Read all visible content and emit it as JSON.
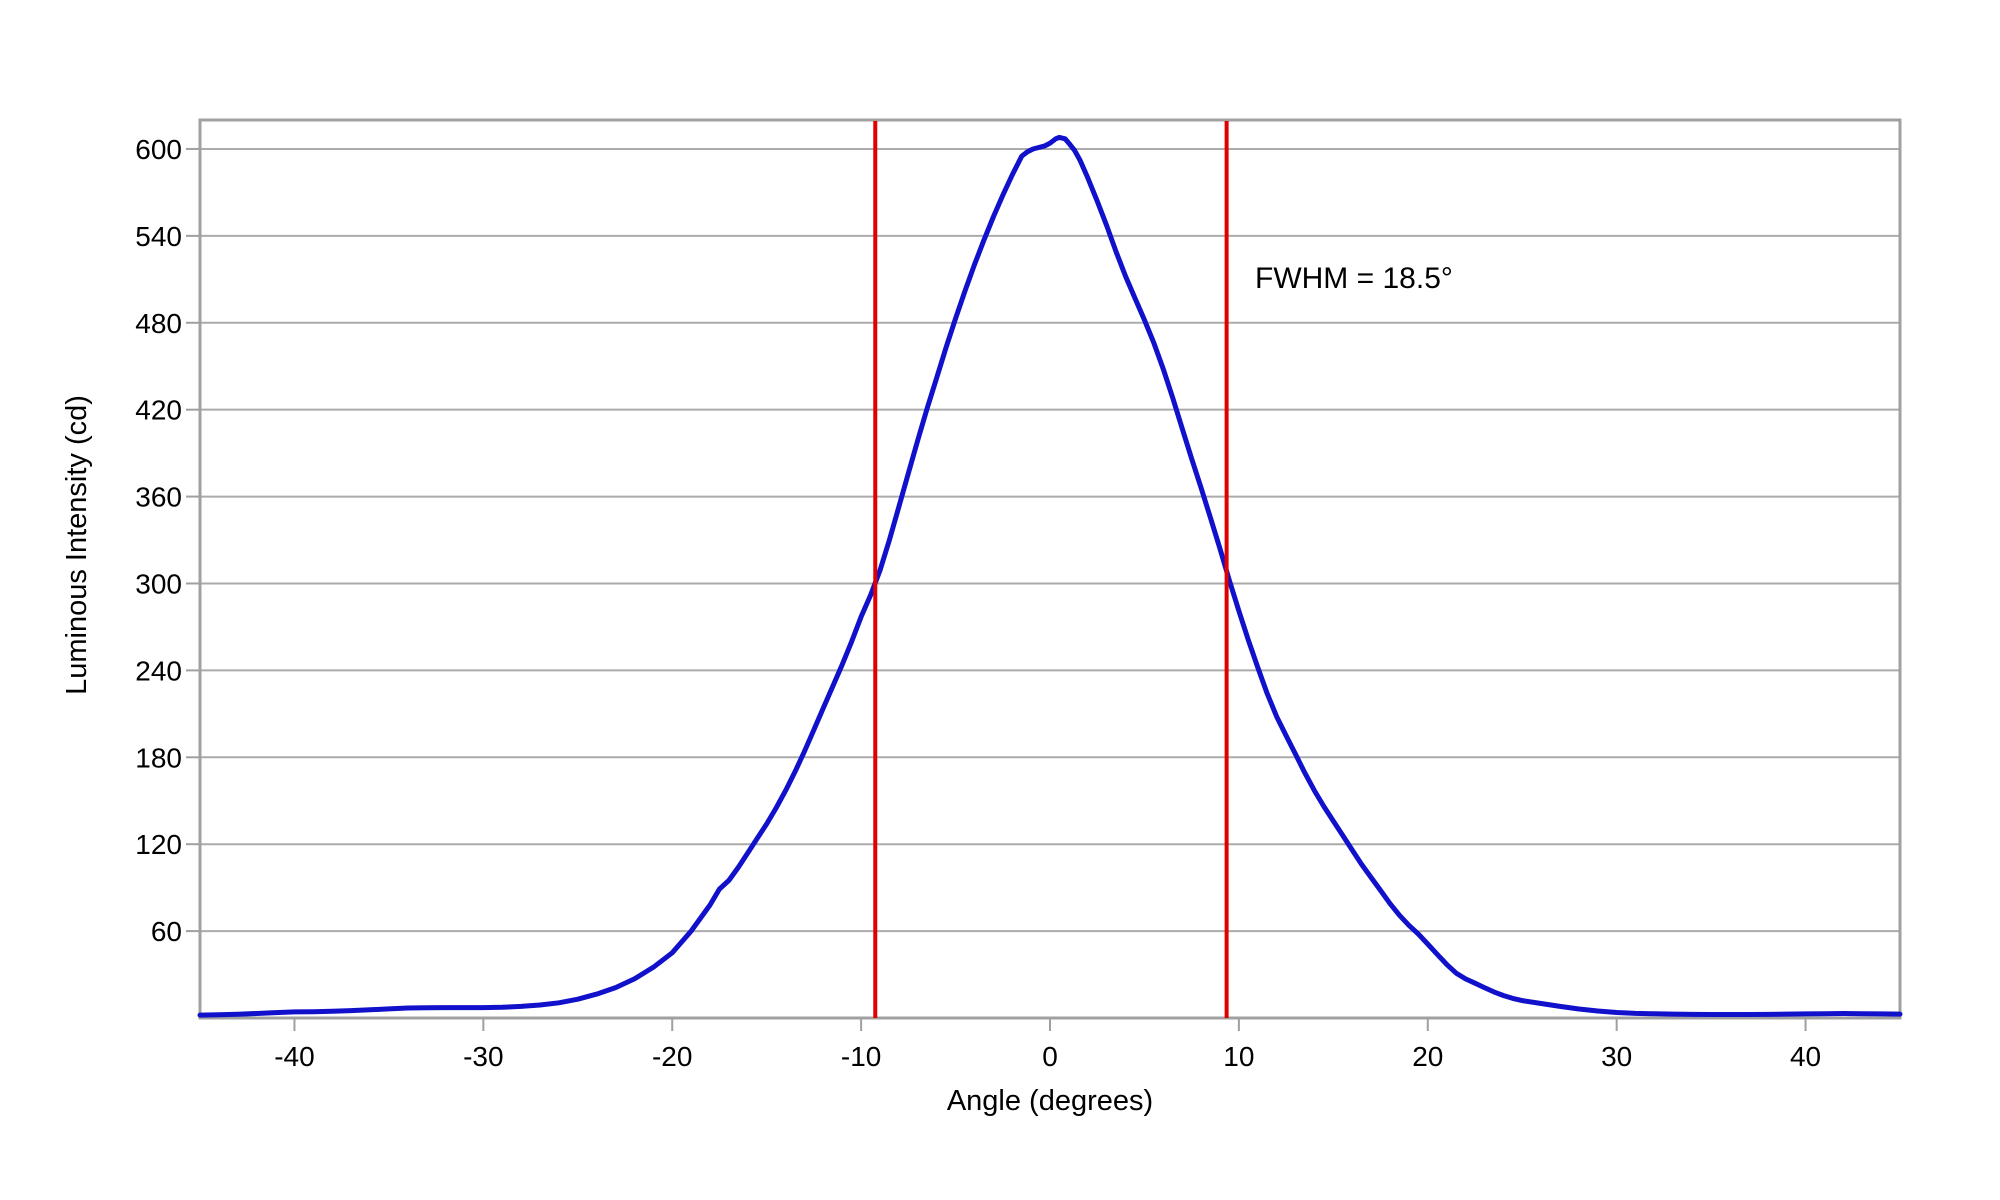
{
  "chart_data": {
    "type": "line",
    "title": "",
    "xlabel": "Angle (degrees)",
    "ylabel": "Luminous Intensity (cd)",
    "xlim": [
      -45,
      45
    ],
    "ylim": [
      0,
      620
    ],
    "x_ticks": [
      -40,
      -30,
      -20,
      -10,
      0,
      10,
      20,
      30,
      40
    ],
    "y_ticks": [
      60,
      120,
      180,
      240,
      300,
      360,
      420,
      480,
      540,
      600
    ],
    "grid": "horizontal-only",
    "legend": "none",
    "background_color": "#ffffff",
    "gridline_color": "#ababab",
    "border_color": "#a0a0a0",
    "annotation_text": "FWHM = 18.5°",
    "fwhm_degrees": 18.5,
    "fwhm_lines": {
      "color": "#e00000",
      "angles": [
        -9.25,
        9.35
      ],
      "half_max_cd": 300
    },
    "series": [
      {
        "name": "luminous-intensity-curve",
        "color": "#1111cc",
        "points": [
          [
            -45,
            2.0
          ],
          [
            -44,
            2.2
          ],
          [
            -43,
            2.6
          ],
          [
            -42,
            3.1
          ],
          [
            -41,
            3.7
          ],
          [
            -40,
            4.2
          ],
          [
            -39,
            4.3
          ],
          [
            -38,
            4.6
          ],
          [
            -37,
            5.1
          ],
          [
            -36,
            5.7
          ],
          [
            -35,
            6.3
          ],
          [
            -34,
            6.9
          ],
          [
            -33,
            7.1
          ],
          [
            -32,
            7.2
          ],
          [
            -31,
            7.2
          ],
          [
            -30,
            7.2
          ],
          [
            -29,
            7.4
          ],
          [
            -28,
            8.0
          ],
          [
            -27,
            9.0
          ],
          [
            -26,
            10.5
          ],
          [
            -25,
            13.0
          ],
          [
            -24,
            16.5
          ],
          [
            -23,
            21.0
          ],
          [
            -22,
            27.0
          ],
          [
            -21,
            35.0
          ],
          [
            -20,
            45.0
          ],
          [
            -19,
            60.0
          ],
          [
            -18,
            78.0
          ],
          [
            -17.5,
            89.0
          ],
          [
            -17,
            95.0
          ],
          [
            -16.5,
            104
          ],
          [
            -16,
            114
          ],
          [
            -15.5,
            124
          ],
          [
            -15,
            134
          ],
          [
            -14.5,
            145
          ],
          [
            -14,
            157
          ],
          [
            -13.5,
            170
          ],
          [
            -13,
            184
          ],
          [
            -12.5,
            199
          ],
          [
            -12,
            214
          ],
          [
            -11.5,
            229
          ],
          [
            -11,
            244
          ],
          [
            -10.5,
            260
          ],
          [
            -10,
            277
          ],
          [
            -9.5,
            292
          ],
          [
            -9,
            309
          ],
          [
            -8.5,
            330
          ],
          [
            -8,
            353
          ],
          [
            -7.5,
            376
          ],
          [
            -7,
            399
          ],
          [
            -6.5,
            421
          ],
          [
            -6,
            442
          ],
          [
            -5.5,
            463
          ],
          [
            -5,
            483
          ],
          [
            -4.5,
            502
          ],
          [
            -4,
            520
          ],
          [
            -3.5,
            537
          ],
          [
            -3,
            553
          ],
          [
            -2.5,
            568
          ],
          [
            -2,
            582
          ],
          [
            -1.5,
            595
          ],
          [
            -1.2,
            598
          ],
          [
            -0.9,
            600
          ],
          [
            -0.6,
            601
          ],
          [
            -0.3,
            602
          ],
          [
            0,
            604
          ],
          [
            0.3,
            607
          ],
          [
            0.5,
            608
          ],
          [
            0.8,
            607
          ],
          [
            1,
            604
          ],
          [
            1.3,
            599
          ],
          [
            1.6,
            592
          ],
          [
            2,
            580
          ],
          [
            2.5,
            564
          ],
          [
            3,
            547
          ],
          [
            3.5,
            529
          ],
          [
            4,
            512
          ],
          [
            4.5,
            497
          ],
          [
            5,
            482
          ],
          [
            5.5,
            466
          ],
          [
            6,
            448
          ],
          [
            6.5,
            428
          ],
          [
            7,
            407
          ],
          [
            7.5,
            386
          ],
          [
            8,
            366
          ],
          [
            8.5,
            345
          ],
          [
            9,
            324
          ],
          [
            9.5,
            302
          ],
          [
            10,
            281
          ],
          [
            10.5,
            261
          ],
          [
            11,
            242
          ],
          [
            11.5,
            224
          ],
          [
            12,
            208
          ],
          [
            12.5,
            195
          ],
          [
            13,
            182
          ],
          [
            13.5,
            169
          ],
          [
            14,
            157
          ],
          [
            14.5,
            146
          ],
          [
            15,
            136
          ],
          [
            15.5,
            126
          ],
          [
            16,
            116
          ],
          [
            16.5,
            106
          ],
          [
            17,
            97
          ],
          [
            17.5,
            88
          ],
          [
            18,
            79
          ],
          [
            18.5,
            71
          ],
          [
            19,
            64
          ],
          [
            19.5,
            58
          ],
          [
            20,
            51
          ],
          [
            20.5,
            44
          ],
          [
            21,
            37
          ],
          [
            21.5,
            31
          ],
          [
            22,
            27
          ],
          [
            22.5,
            24
          ],
          [
            23,
            21
          ],
          [
            23.5,
            18
          ],
          [
            24,
            15.5
          ],
          [
            24.5,
            13.5
          ],
          [
            25,
            12
          ],
          [
            26,
            10
          ],
          [
            27,
            8
          ],
          [
            28,
            6.2
          ],
          [
            29,
            4.8
          ],
          [
            30,
            3.8
          ],
          [
            31,
            3.2
          ],
          [
            32,
            2.9
          ],
          [
            33,
            2.7
          ],
          [
            34,
            2.5
          ],
          [
            35,
            2.4
          ],
          [
            36,
            2.4
          ],
          [
            37,
            2.4
          ],
          [
            38,
            2.5
          ],
          [
            39,
            2.7
          ],
          [
            40,
            2.8
          ],
          [
            41,
            3.0
          ],
          [
            42,
            3.1
          ],
          [
            43,
            3.0
          ],
          [
            44,
            2.8
          ],
          [
            45,
            2.7
          ]
        ]
      }
    ]
  }
}
